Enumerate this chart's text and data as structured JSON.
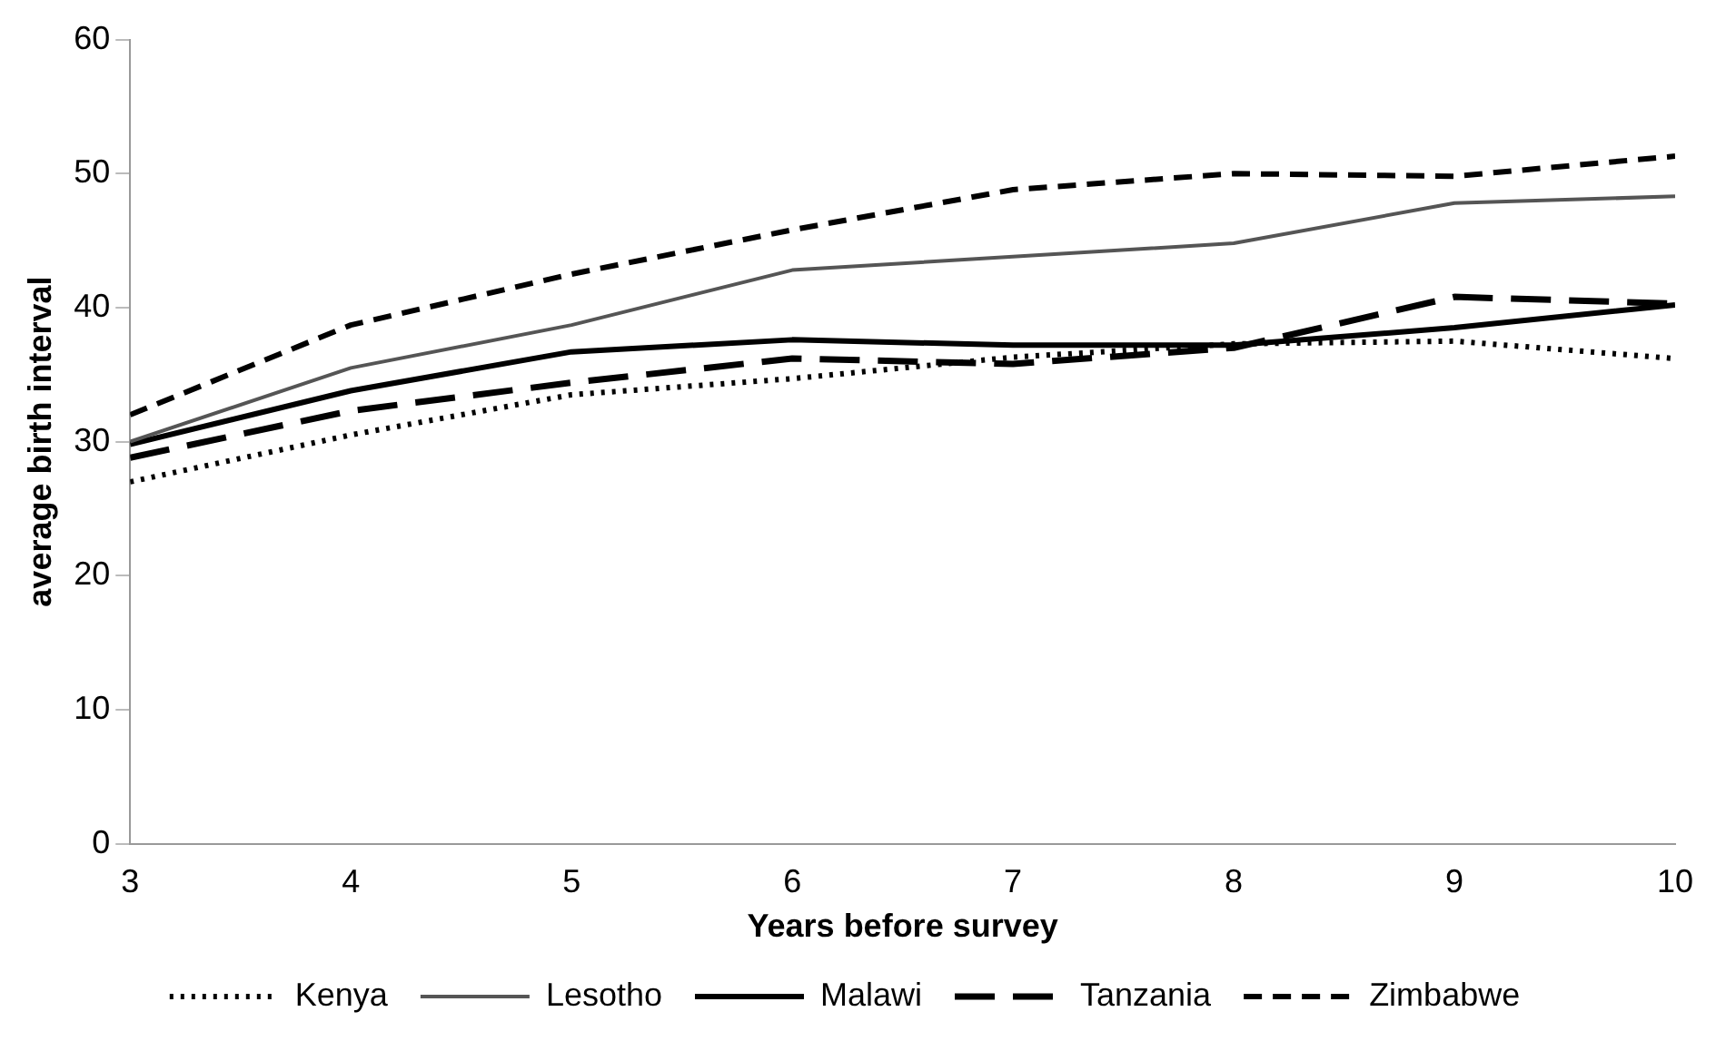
{
  "chart_data": {
    "type": "line",
    "xlabel": "Years before survey",
    "ylabel": "average birth interval",
    "x": [
      3,
      4,
      5,
      6,
      7,
      8,
      9,
      10
    ],
    "series": [
      {
        "name": "Kenya",
        "color": "#000000",
        "line_style": "dotted",
        "values": [
          27,
          30.5,
          33.5,
          34.7,
          36.3,
          37.3,
          37.5,
          36.2
        ]
      },
      {
        "name": "Lesotho",
        "color": "#555555",
        "line_style": "solid",
        "values": [
          30,
          35.5,
          38.7,
          42.8,
          43.8,
          44.8,
          47.8,
          48.3
        ]
      },
      {
        "name": "Malawi",
        "color": "#000000",
        "line_style": "solid",
        "values": [
          29.8,
          33.8,
          36.7,
          37.6,
          37.2,
          37.2,
          38.5,
          40.2
        ]
      },
      {
        "name": "Tanzania",
        "color": "#000000",
        "line_style": "dashed",
        "values": [
          28.8,
          32.3,
          34.4,
          36.2,
          35.8,
          37,
          40.8,
          40.3
        ]
      },
      {
        "name": "Zimbabwe",
        "color": "#000000",
        "line_style": "dashed",
        "values": [
          32,
          38.7,
          42.5,
          45.8,
          48.8,
          50,
          49.8,
          51.3
        ]
      }
    ],
    "xlim": [
      3,
      10
    ],
    "xticks": [
      3,
      4,
      5,
      6,
      7,
      8,
      9,
      10
    ],
    "ylim": [
      0,
      60
    ],
    "yticks": [
      0,
      10,
      20,
      30,
      40,
      50,
      60
    ],
    "grid": false,
    "legend": "bottom",
    "marker": "none"
  }
}
